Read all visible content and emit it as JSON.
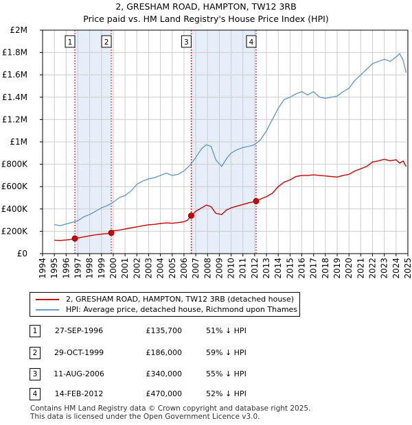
{
  "title_line1": "2, GRESHAM ROAD, HAMPTON, TW12 3RB",
  "title_line2": "Price paid vs. HM Land Registry's House Price Index (HPI)",
  "colors": {
    "property": "#cc0000",
    "hpi": "#6699cc",
    "shade": "#e6eefa",
    "marker_line": "#cc0000"
  },
  "chart_data": {
    "type": "line",
    "title": "Price paid vs. HM Land Registry's House Price Index (HPI)",
    "xlabel": "",
    "ylabel": "",
    "xlim": [
      1994,
      2025
    ],
    "ylim": [
      0,
      2000000
    ],
    "grid": true,
    "y_ticks": [
      {
        "value": 0,
        "label": "£0"
      },
      {
        "value": 200000,
        "label": "£200K"
      },
      {
        "value": 400000,
        "label": "£400K"
      },
      {
        "value": 600000,
        "label": "£600K"
      },
      {
        "value": 800000,
        "label": "£800K"
      },
      {
        "value": 1000000,
        "label": "£1M"
      },
      {
        "value": 1200000,
        "label": "£1.2M"
      },
      {
        "value": 1400000,
        "label": "£1.4M"
      },
      {
        "value": 1600000,
        "label": "£1.6M"
      },
      {
        "value": 1800000,
        "label": "£1.8M"
      },
      {
        "value": 2000000,
        "label": "£2M"
      }
    ],
    "x_ticks": [
      "1994",
      "1995",
      "1996",
      "1997",
      "1998",
      "1999",
      "2000",
      "2001",
      "2002",
      "2003",
      "2004",
      "2005",
      "2006",
      "2007",
      "2008",
      "2009",
      "2010",
      "2011",
      "2012",
      "2013",
      "2014",
      "2015",
      "2016",
      "2017",
      "2018",
      "2019",
      "2020",
      "2021",
      "2022",
      "2023",
      "2024",
      "2025"
    ],
    "series": [
      {
        "name": "2, GRESHAM ROAD, HAMPTON, TW12 3RB (detached house)",
        "x": [
          1995.0,
          1995.5,
          1996.0,
          1996.5,
          1996.74,
          1997.0,
          1997.5,
          1998.0,
          1998.5,
          1999.0,
          1999.5,
          1999.83,
          2000.0,
          2000.5,
          2001.0,
          2001.5,
          2002.0,
          2002.5,
          2003.0,
          2003.5,
          2004.0,
          2004.5,
          2005.0,
          2005.5,
          2006.0,
          2006.3,
          2006.61,
          2007.0,
          2007.5,
          2007.9,
          2008.3,
          2008.7,
          2009.2,
          2009.6,
          2010.0,
          2010.5,
          2011.0,
          2011.5,
          2012.0,
          2012.12,
          2012.5,
          2013.0,
          2013.5,
          2014.0,
          2014.5,
          2015.0,
          2015.5,
          2016.0,
          2016.5,
          2017.0,
          2017.5,
          2018.0,
          2018.5,
          2019.0,
          2019.5,
          2020.0,
          2020.5,
          2021.0,
          2021.5,
          2022.0,
          2022.5,
          2023.0,
          2023.5,
          2024.0,
          2024.3,
          2024.6,
          2024.85
        ],
        "values": [
          120000,
          118000,
          122000,
          128000,
          135700,
          140000,
          150000,
          160000,
          168000,
          175000,
          180000,
          186000,
          205000,
          210000,
          220000,
          230000,
          240000,
          250000,
          258000,
          262000,
          270000,
          275000,
          272000,
          278000,
          285000,
          300000,
          340000,
          380000,
          410000,
          435000,
          420000,
          360000,
          350000,
          390000,
          410000,
          425000,
          440000,
          455000,
          465000,
          470000,
          490000,
          510000,
          540000,
          600000,
          640000,
          660000,
          690000,
          700000,
          700000,
          705000,
          700000,
          695000,
          690000,
          685000,
          700000,
          710000,
          740000,
          760000,
          780000,
          820000,
          830000,
          845000,
          830000,
          840000,
          810000,
          830000,
          780000
        ]
      },
      {
        "name": "HPI: Average price, detached house, Richmond upon Thames",
        "x": [
          1995.0,
          1995.5,
          1996.0,
          1996.5,
          1997.0,
          1997.5,
          1998.0,
          1998.5,
          1999.0,
          1999.5,
          2000.0,
          2000.5,
          2001.0,
          2001.5,
          2002.0,
          2002.5,
          2003.0,
          2003.5,
          2004.0,
          2004.5,
          2005.0,
          2005.5,
          2006.0,
          2006.5,
          2007.0,
          2007.5,
          2007.9,
          2008.3,
          2008.7,
          2009.2,
          2009.6,
          2010.0,
          2010.5,
          2011.0,
          2011.5,
          2012.0,
          2012.5,
          2013.0,
          2013.5,
          2014.0,
          2014.5,
          2015.0,
          2015.5,
          2016.0,
          2016.5,
          2017.0,
          2017.5,
          2018.0,
          2018.5,
          2019.0,
          2019.5,
          2020.0,
          2020.5,
          2021.0,
          2021.5,
          2022.0,
          2022.5,
          2023.0,
          2023.5,
          2024.0,
          2024.3,
          2024.6,
          2024.85
        ],
        "values": [
          260000,
          250000,
          265000,
          280000,
          295000,
          330000,
          350000,
          380000,
          410000,
          430000,
          460000,
          500000,
          520000,
          560000,
          620000,
          650000,
          670000,
          680000,
          700000,
          720000,
          700000,
          710000,
          740000,
          790000,
          860000,
          940000,
          975000,
          960000,
          840000,
          780000,
          850000,
          900000,
          930000,
          950000,
          960000,
          975000,
          1020000,
          1100000,
          1200000,
          1300000,
          1380000,
          1400000,
          1430000,
          1450000,
          1420000,
          1450000,
          1400000,
          1390000,
          1400000,
          1410000,
          1450000,
          1480000,
          1550000,
          1600000,
          1650000,
          1700000,
          1720000,
          1740000,
          1720000,
          1760000,
          1790000,
          1730000,
          1620000
        ]
      }
    ],
    "sales": [
      {
        "id": "1",
        "x": 1996.74,
        "value": 135700
      },
      {
        "id": "2",
        "x": 1999.83,
        "value": 186000
      },
      {
        "id": "3",
        "x": 2006.61,
        "value": 340000
      },
      {
        "id": "4",
        "x": 2012.12,
        "value": 470000
      }
    ],
    "shaded_ranges": [
      [
        1996.74,
        1999.83
      ],
      [
        2006.61,
        2012.12
      ]
    ],
    "data_end": 2024.85
  },
  "legend": {
    "property_label": "2, GRESHAM ROAD, HAMPTON, TW12 3RB (detached house)",
    "hpi_label": "HPI: Average price, detached house, Richmond upon Thames"
  },
  "transactions": [
    {
      "num": "1",
      "date": "27-SEP-1996",
      "price": "£135,700",
      "hpi": "51% ↓ HPI"
    },
    {
      "num": "2",
      "date": "29-OCT-1999",
      "price": "£186,000",
      "hpi": "59% ↓ HPI"
    },
    {
      "num": "3",
      "date": "11-AUG-2006",
      "price": "£340,000",
      "hpi": "55% ↓ HPI"
    },
    {
      "num": "4",
      "date": "14-FEB-2012",
      "price": "£470,000",
      "hpi": "52% ↓ HPI"
    }
  ],
  "footer_line1": "Contains HM Land Registry data © Crown copyright and database right 2025.",
  "footer_line2": "This data is licensed under the Open Government Licence v3.0."
}
